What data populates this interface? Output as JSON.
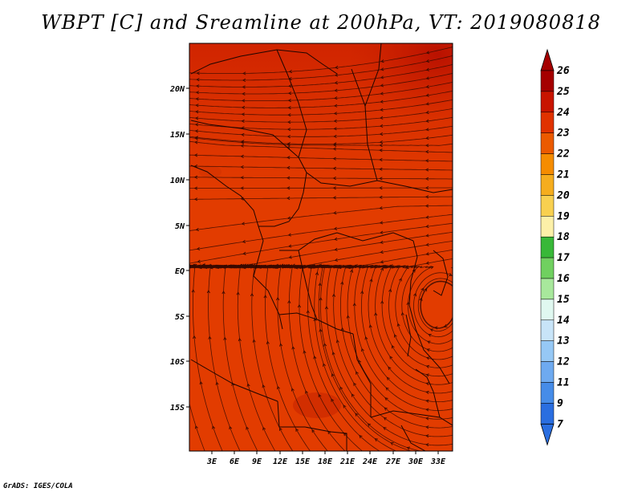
{
  "title": "WBPT [C] and Sreamline at 200hPa, VT: 2019080818",
  "credit": "GrADS: IGES/COLA",
  "map": {
    "lat_ticks": [
      "20N",
      "15N",
      "10N",
      "5N",
      "EQ",
      "5S",
      "10S",
      "15S"
    ],
    "lon_ticks": [
      "3E",
      "6E",
      "9E",
      "12E",
      "15E",
      "18E",
      "21E",
      "24E",
      "27E",
      "30E",
      "33E"
    ]
  },
  "colorbar": {
    "levels": [
      "26",
      "25",
      "24",
      "23",
      "22",
      "21",
      "20",
      "19",
      "18",
      "17",
      "16",
      "15",
      "14",
      "13",
      "12",
      "11",
      "9",
      "7"
    ],
    "colors": [
      "#a50000",
      "#c81400",
      "#e03200",
      "#eb5a00",
      "#f58c00",
      "#f5ad1e",
      "#f8d050",
      "#fcf0a8",
      "#38b838",
      "#70d060",
      "#a8e89c",
      "#e0f8f0",
      "#c8e4f8",
      "#96c8f5",
      "#6eaaf0",
      "#468ce8",
      "#2a6ee0"
    ],
    "arrow_top": "#a50000",
    "arrow_bottom": "#2a6ee0"
  },
  "palette": {
    "base": "#e23c00",
    "warm": "#cc2800",
    "hot": "#b81400",
    "streamline": "#3a0a00",
    "border": "#1e0500"
  }
}
